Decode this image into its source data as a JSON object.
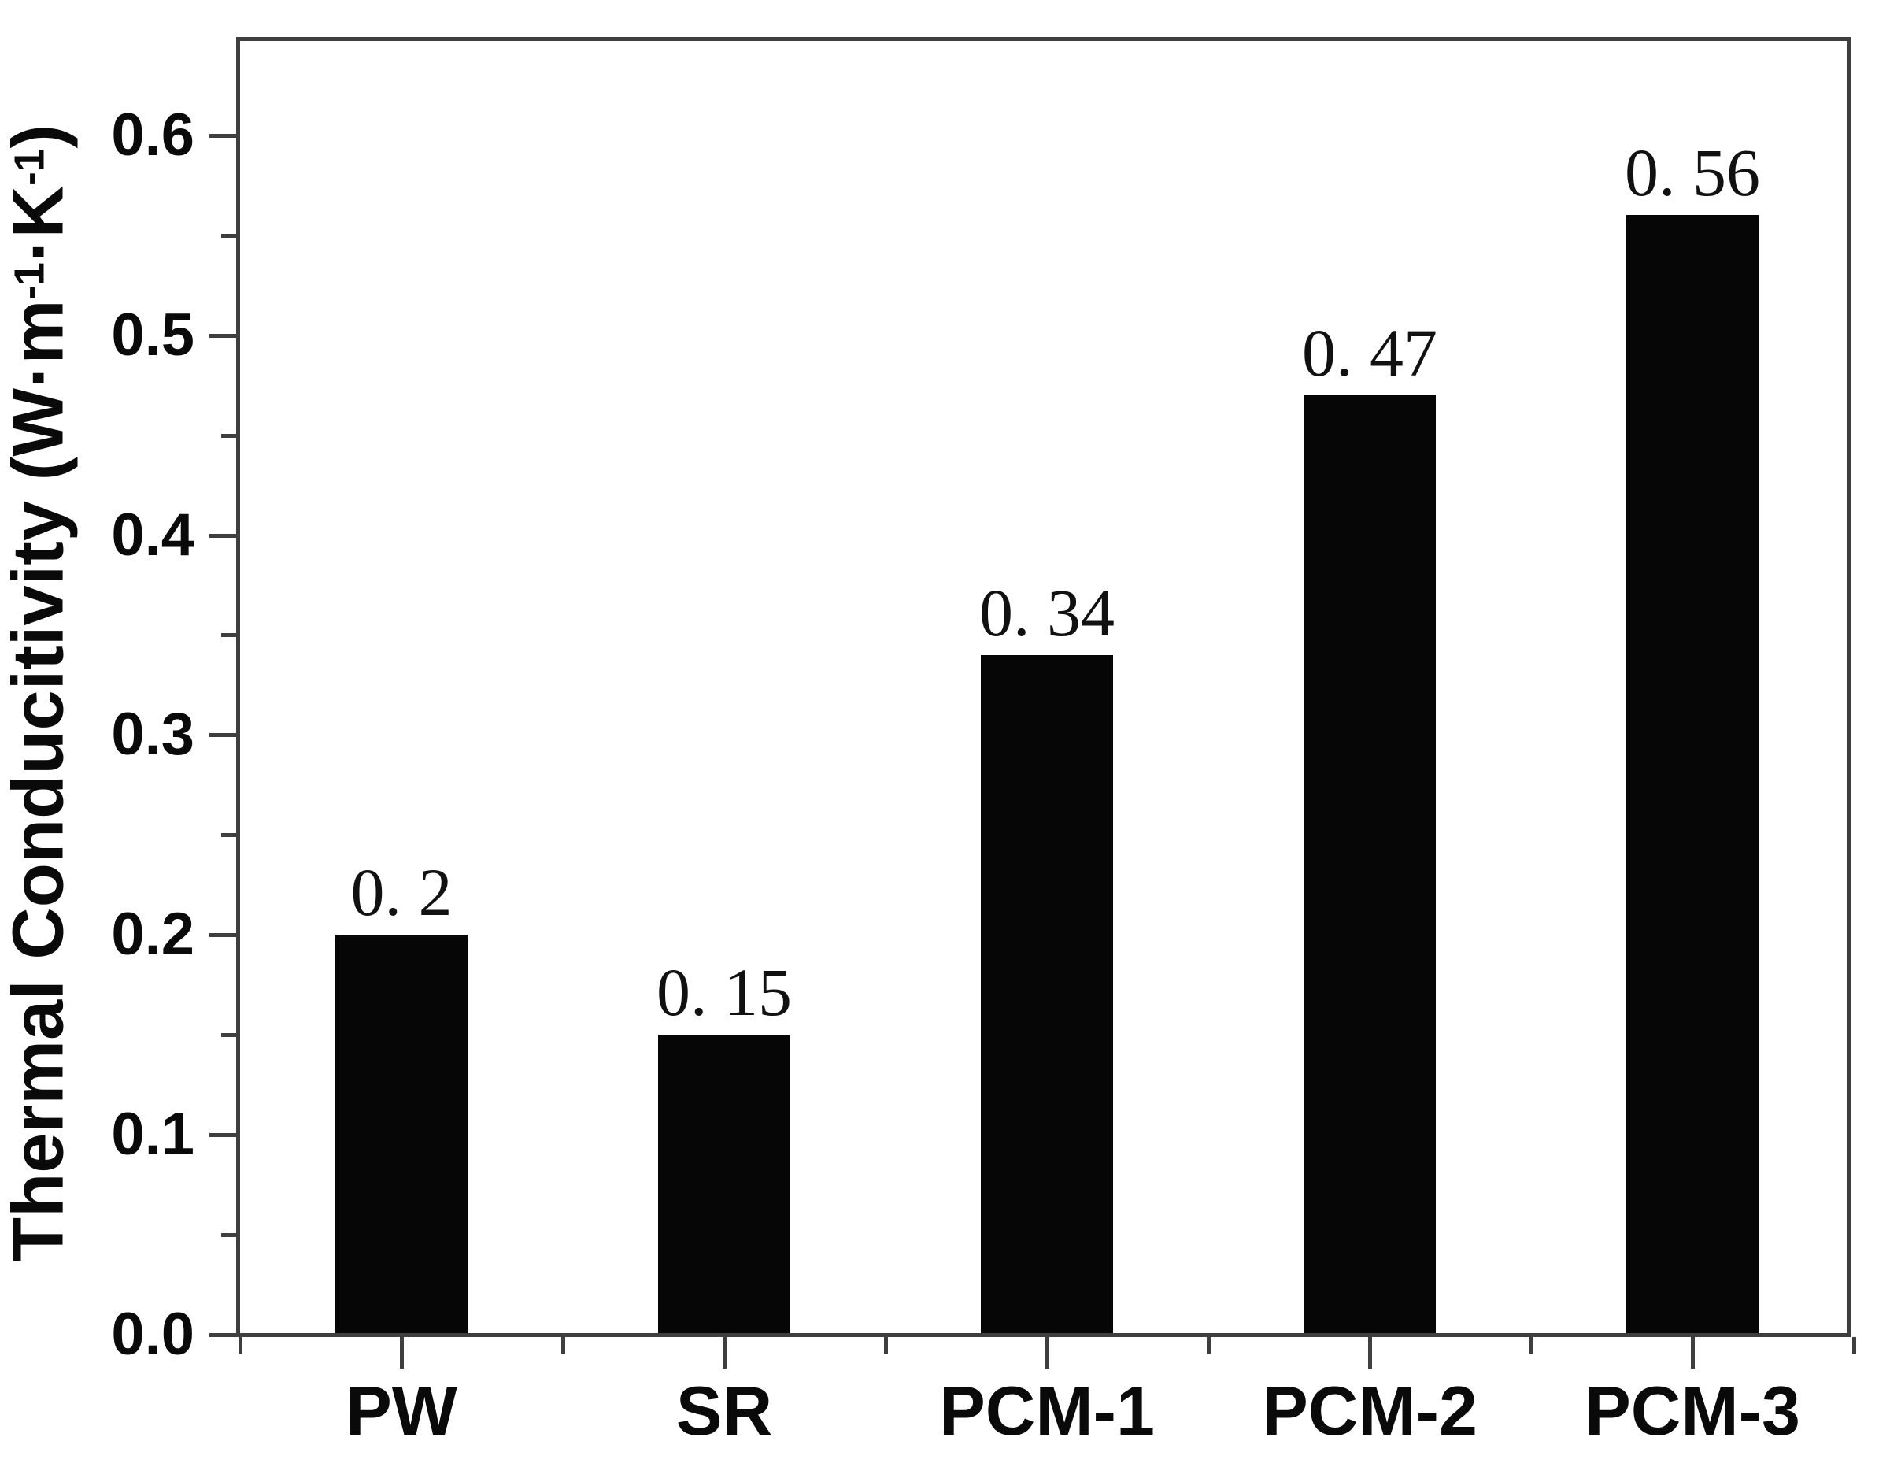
{
  "figure": {
    "background_color": "#ffffff",
    "axis_color": "#3f3f3f",
    "bar_color": "#060606",
    "text_color": "#0a0a0a"
  },
  "chart_data": {
    "type": "bar",
    "title": "",
    "categories": [
      "PW",
      "SR",
      "PCM-1",
      "PCM-2",
      "PCM-3"
    ],
    "values": [
      0.2,
      0.15,
      0.34,
      0.47,
      0.56
    ],
    "value_labels": [
      "0. 2",
      "0. 15",
      "0. 34",
      "0. 47",
      "0. 56"
    ],
    "xlabel": "",
    "ylabel": "Thermal Conducitivity (W·m⁻¹·K⁻¹)",
    "ylabel_parts": [
      {
        "text": "Thermal Conducitivity (W·m",
        "sup": false
      },
      {
        "text": "-1",
        "sup": true
      },
      {
        "text": "·K",
        "sup": false
      },
      {
        "text": "-1",
        "sup": true
      },
      {
        "text": ")",
        "sup": false
      }
    ],
    "ylim": [
      0,
      0.648
    ],
    "yticks": {
      "major": [
        0.0,
        0.1,
        0.2,
        0.3,
        0.4,
        0.5,
        0.6
      ],
      "major_labels": [
        "0.0",
        "0.1",
        "0.2",
        "0.3",
        "0.4",
        "0.5",
        "0.6"
      ],
      "minor": [
        0.05,
        0.15,
        0.25,
        0.35,
        0.45,
        0.55
      ]
    },
    "grid": false,
    "legend": null,
    "bar_width_fraction": 0.41,
    "bar_color": "#060606"
  }
}
